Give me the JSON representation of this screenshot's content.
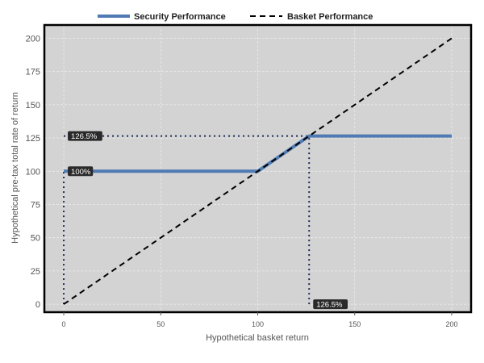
{
  "chart_data": {
    "type": "line",
    "xlabel": "Hypothetical basket return",
    "ylabel": "Hypothetical pre-tax total rate of return",
    "xlim": [
      -10,
      210
    ],
    "ylim": [
      -6,
      210
    ],
    "x_ticks": [
      0,
      50,
      100,
      150,
      200
    ],
    "y_ticks": [
      0,
      25,
      50,
      75,
      100,
      125,
      150,
      175,
      200
    ],
    "grid": true,
    "legend_position": "top",
    "series": [
      {
        "name": "Security Performance",
        "style": "solid",
        "color": "#4f7ab3",
        "points": [
          [
            0,
            100
          ],
          [
            100,
            100
          ],
          [
            126.5,
            126.5
          ],
          [
            200,
            126.5
          ]
        ]
      },
      {
        "name": "Basket Performance",
        "style": "dashed",
        "color": "#000000",
        "points": [
          [
            0,
            0
          ],
          [
            200,
            200
          ]
        ]
      }
    ],
    "reference_lines": [
      {
        "points": [
          [
            0,
            0
          ],
          [
            0,
            100
          ]
        ],
        "style": "dotted",
        "color": "#1b2a55"
      },
      {
        "points": [
          [
            0,
            126.5
          ],
          [
            126.5,
            126.5
          ]
        ],
        "style": "dotted",
        "color": "#1b2a55"
      },
      {
        "points": [
          [
            126.5,
            0
          ],
          [
            126.5,
            126.5
          ]
        ],
        "style": "dotted",
        "color": "#1b2a55"
      }
    ],
    "annotations": [
      {
        "text": "100%",
        "x": 0,
        "y": 100
      },
      {
        "text": "126.5%",
        "x": 0,
        "y": 126.5
      },
      {
        "text": "126.5%",
        "x": 126.5,
        "y": 0
      }
    ],
    "colors": {
      "plot_background": "#d3d3d3",
      "grid": "#ebebeb",
      "annotation_box": "#2a2a2a"
    }
  }
}
